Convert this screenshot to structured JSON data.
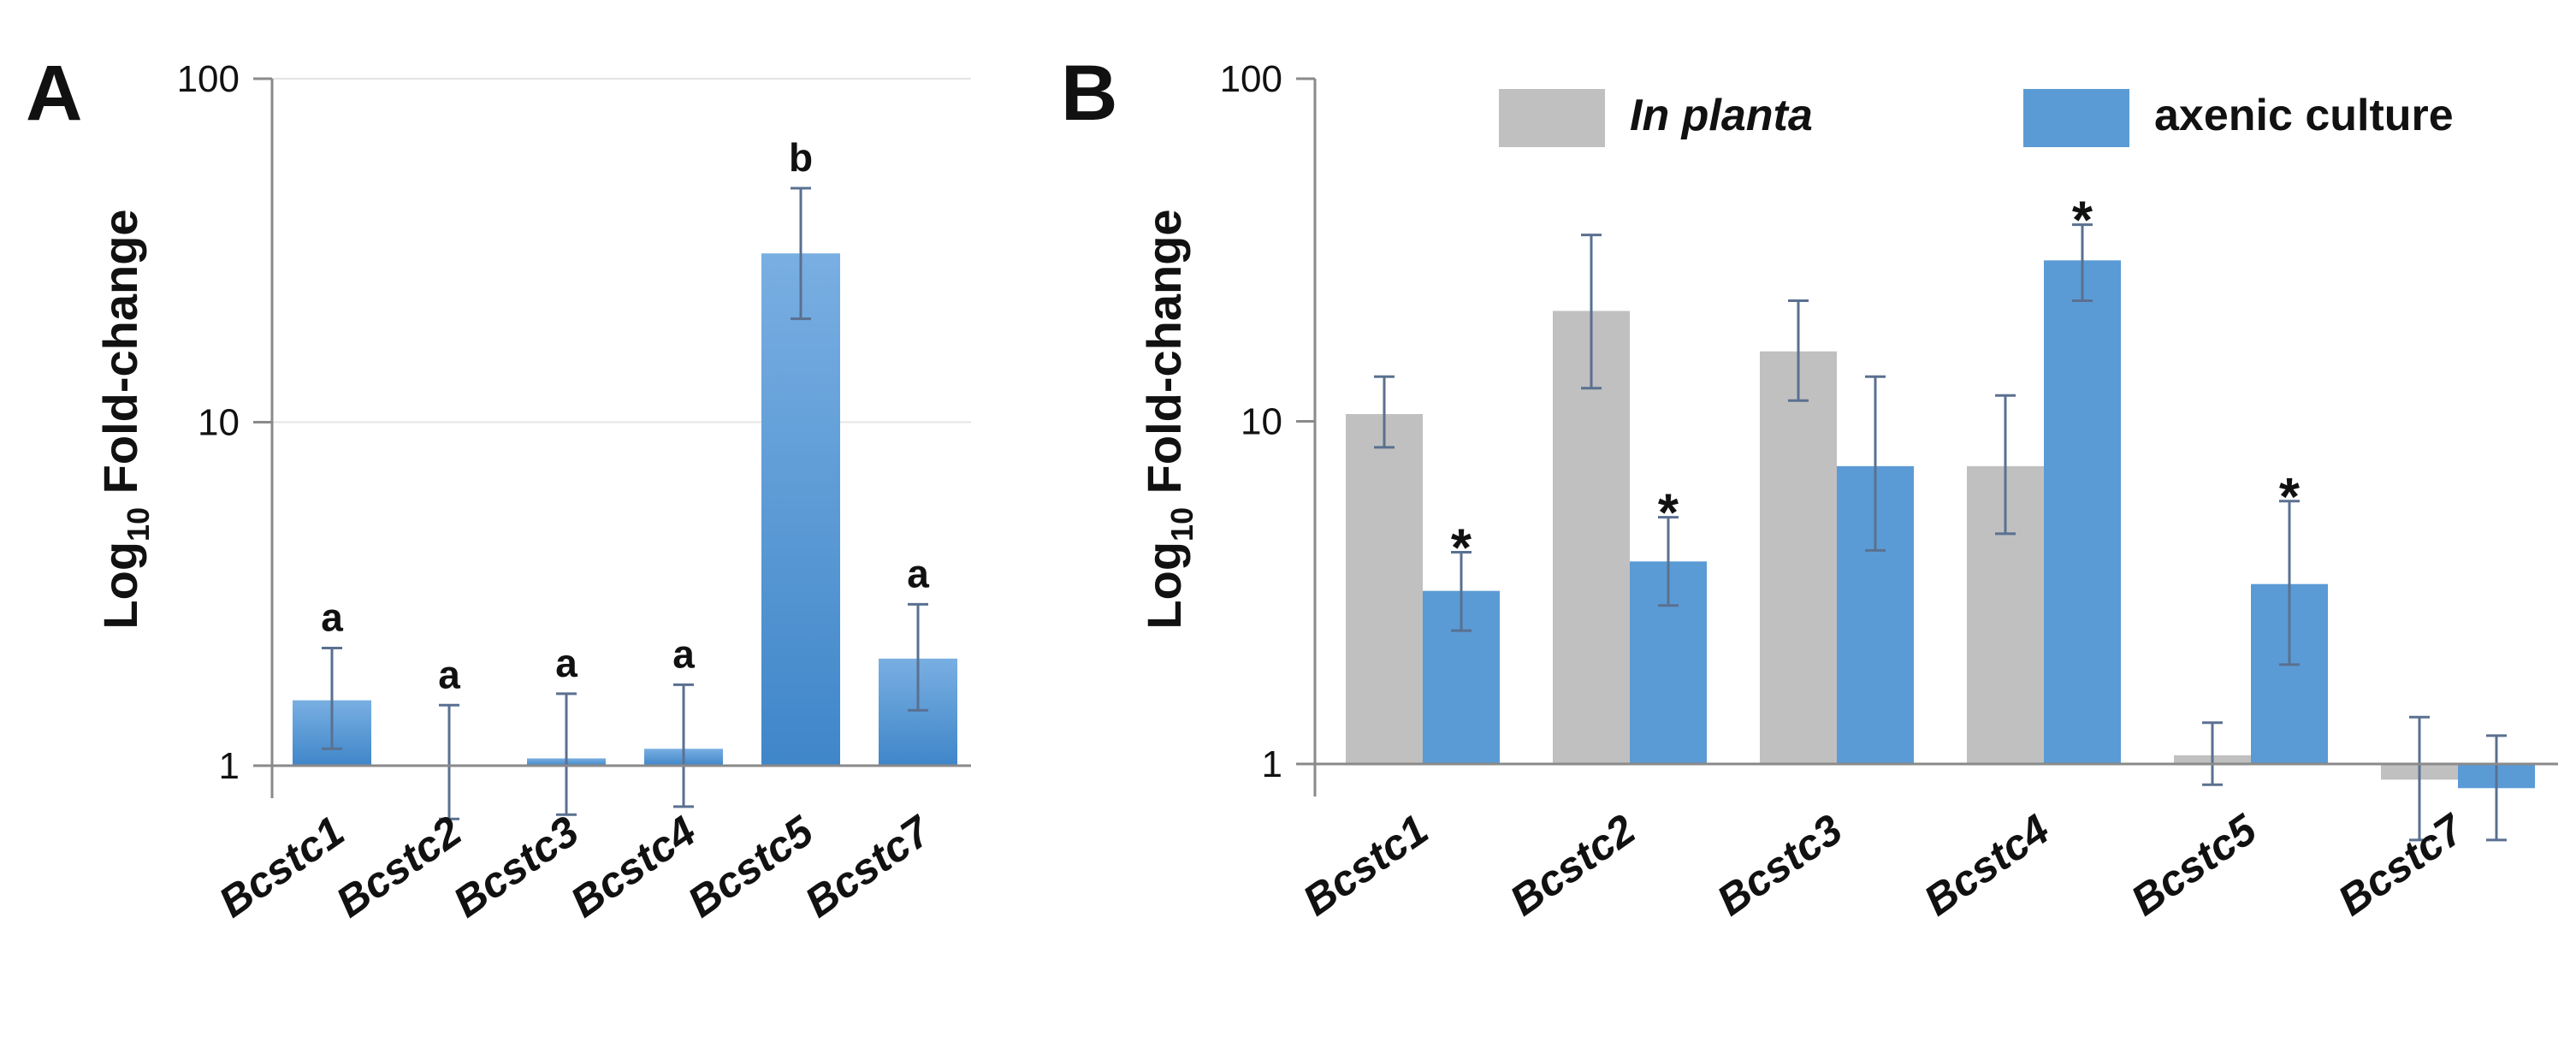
{
  "colors": {
    "blue": "#5b9bd5",
    "blue_light": "#79afe2",
    "blue_dark": "#3f86c9",
    "gray": "#c0c0c0",
    "axis": "#8a8a8a",
    "error": "#5a7090"
  },
  "chart_data": [
    {
      "panel": "A",
      "type": "bar",
      "scale": "log10",
      "ylim": [
        0.75,
        100
      ],
      "yticks": [
        1,
        10,
        100
      ],
      "ytick_labels": [
        "1",
        "10",
        "100"
      ],
      "ylabel_main": "Log",
      "ylabel_sub": "10",
      "ylabel_rest": " Fold-change",
      "categories": [
        "Bcstc1",
        "Bcstc2",
        "Bcstc3",
        "Bcstc4",
        "Bcstc5",
        "Bcstc7"
      ],
      "series": [
        {
          "name": "fold-change",
          "values": [
            1.55,
            1.0,
            1.05,
            1.12,
            31,
            2.05
          ],
          "err_low": [
            1.12,
            0.7,
            0.72,
            0.76,
            20,
            1.45
          ],
          "err_high": [
            2.2,
            1.5,
            1.62,
            1.72,
            48,
            2.95
          ],
          "labels": [
            "a",
            "a",
            "a",
            "a",
            "b",
            "a"
          ]
        }
      ]
    },
    {
      "panel": "B",
      "type": "bar",
      "scale": "log10",
      "ylim": [
        0.75,
        100
      ],
      "yticks": [
        1,
        10,
        100
      ],
      "ytick_labels": [
        "1",
        "10",
        "100"
      ],
      "ylabel_main": "Log",
      "ylabel_sub": "10",
      "ylabel_rest": " Fold-change",
      "categories": [
        "Bcstc1",
        "Bcstc2",
        "Bcstc3",
        "Bcstc4",
        "Bcstc5",
        "Bcstc7"
      ],
      "legend_position": "top",
      "series": [
        {
          "name": "In planta",
          "values": [
            10.5,
            21,
            16,
            7.4,
            1.06,
            0.9
          ],
          "err_low": [
            8.4,
            12.5,
            11.5,
            4.7,
            0.87,
            0.6
          ],
          "err_high": [
            13.5,
            35,
            22.5,
            11.9,
            1.32,
            1.37
          ]
        },
        {
          "name": "axenic culture",
          "values": [
            3.2,
            3.9,
            7.4,
            29.5,
            3.35,
            0.85
          ],
          "err_low": [
            2.45,
            2.9,
            4.2,
            22.5,
            1.95,
            0.6
          ],
          "err_high": [
            4.15,
            5.25,
            13.5,
            37.5,
            5.85,
            1.21
          ],
          "labels": [
            "*",
            "*",
            "",
            "*",
            "*",
            ""
          ]
        }
      ]
    }
  ]
}
